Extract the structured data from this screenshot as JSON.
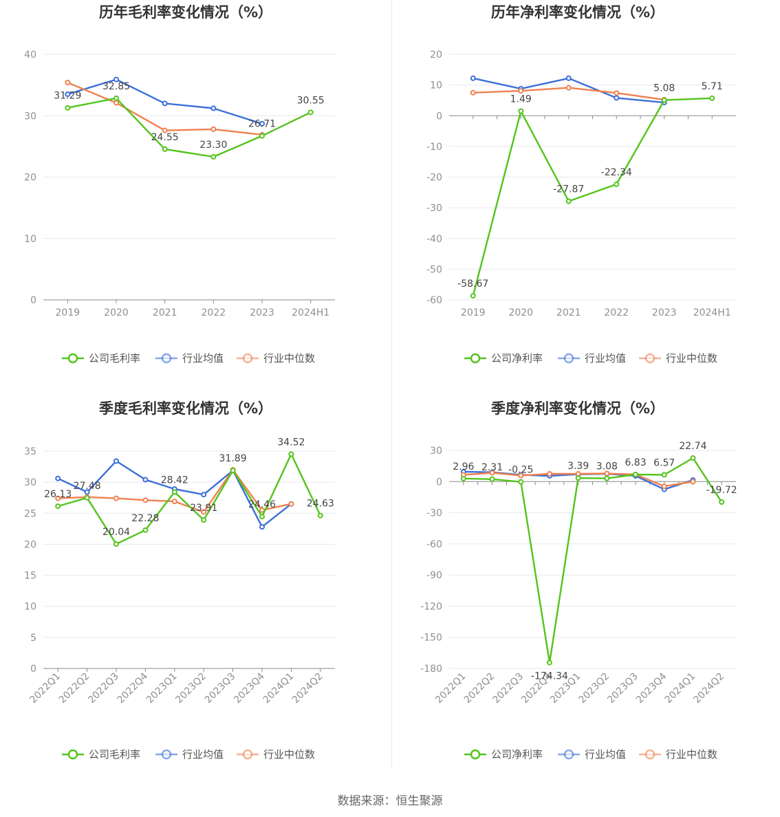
{
  "colors": {
    "company": "#52c41a",
    "avg": "#3a6fd8",
    "median": "#f08050",
    "grid": "#e6e8f0",
    "axis": "#888888"
  },
  "legend": {
    "gross": [
      "公司毛利率",
      "行业均值",
      "行业中位数"
    ],
    "net": [
      "公司净利率",
      "行业均值",
      "行业中位数"
    ]
  },
  "source_text": "数据来源：恒生聚源",
  "chart_data": [
    {
      "type": "line",
      "title": "历年毛利率变化情况（%）",
      "categories": [
        "2019",
        "2020",
        "2021",
        "2022",
        "2023",
        "2024H1"
      ],
      "ylim": [
        0,
        40
      ],
      "yticks": [
        0,
        10,
        20,
        30,
        40
      ],
      "series": [
        {
          "name": "公司毛利率",
          "values": [
            31.29,
            32.85,
            24.55,
            23.3,
            26.71,
            30.55
          ],
          "labels": [
            "31.29",
            "32.85",
            "24.55",
            "23.30",
            "26.71",
            "30.55"
          ]
        },
        {
          "name": "行业均值",
          "values": [
            33.5,
            35.9,
            32.0,
            31.2,
            28.7,
            null
          ]
        },
        {
          "name": "行业中位数",
          "values": [
            35.4,
            32.1,
            27.6,
            27.8,
            26.9,
            null
          ]
        }
      ]
    },
    {
      "type": "line",
      "title": "历年净利率变化情况（%）",
      "categories": [
        "2019",
        "2020",
        "2021",
        "2022",
        "2023",
        "2024H1"
      ],
      "ylim": [
        -60,
        20
      ],
      "yticks": [
        -60,
        -50,
        -40,
        -30,
        -20,
        -10,
        0,
        10,
        20
      ],
      "series": [
        {
          "name": "公司净利率",
          "values": [
            -58.67,
            1.49,
            -27.87,
            -22.34,
            5.08,
            5.71
          ],
          "labels": [
            "-58.67",
            "1.49",
            "-27.87",
            "-22.34",
            "5.08",
            "5.71"
          ]
        },
        {
          "name": "行业均值",
          "values": [
            12.2,
            8.8,
            12.2,
            5.8,
            4.3,
            null
          ]
        },
        {
          "name": "行业中位数",
          "values": [
            7.5,
            8.1,
            9.1,
            7.4,
            5.2,
            null
          ]
        }
      ]
    },
    {
      "type": "line",
      "title": "季度毛利率变化情况（%）",
      "categories": [
        "2022Q1",
        "2022Q2",
        "2022Q3",
        "2022Q4",
        "2023Q1",
        "2023Q2",
        "2023Q3",
        "2023Q4",
        "2024Q1",
        "2024Q2"
      ],
      "ylim": [
        0,
        35
      ],
      "yticks": [
        0,
        5,
        10,
        15,
        20,
        25,
        30,
        35
      ],
      "series": [
        {
          "name": "公司毛利率",
          "values": [
            26.13,
            27.48,
            20.04,
            22.28,
            28.42,
            23.91,
            31.89,
            24.46,
            34.52,
            24.63
          ],
          "labels": [
            "26.13",
            "27.48",
            "20.04",
            "22.28",
            "28.42",
            "23.91",
            "31.89",
            "24.46",
            "34.52",
            "24.63"
          ]
        },
        {
          "name": "行业均值",
          "values": [
            30.6,
            28.4,
            33.4,
            30.4,
            28.9,
            28.0,
            31.9,
            22.8,
            26.5,
            null
          ]
        },
        {
          "name": "行业中位数",
          "values": [
            27.4,
            27.6,
            27.4,
            27.1,
            26.9,
            25.2,
            32.0,
            25.5,
            26.5,
            null
          ]
        }
      ]
    },
    {
      "type": "line",
      "title": "季度净利率变化情况（%）",
      "categories": [
        "2022Q1",
        "2022Q2",
        "2022Q3",
        "2022Q4",
        "2023Q1",
        "2023Q2",
        "2023Q3",
        "2023Q4",
        "2024Q1",
        "2024Q2"
      ],
      "ylim": [
        -180,
        30
      ],
      "yticks": [
        -180,
        -150,
        -120,
        -90,
        -60,
        -30,
        0,
        30
      ],
      "series": [
        {
          "name": "公司净利率",
          "values": [
            2.96,
            2.31,
            -0.25,
            -174.34,
            3.39,
            3.08,
            6.83,
            6.57,
            22.74,
            -19.72
          ],
          "labels": [
            "2.96",
            "2.31",
            "-0.25",
            "-174.34",
            "3.39",
            "3.08",
            "6.83",
            "6.57",
            "22.74",
            "-19.72"
          ]
        },
        {
          "name": "行业均值",
          "values": [
            9.5,
            9.0,
            6.5,
            5.5,
            7.0,
            7.5,
            5.5,
            -7.5,
            1.5,
            null
          ]
        },
        {
          "name": "行业中位数",
          "values": [
            6.5,
            8.5,
            5.8,
            7.5,
            7.5,
            7.8,
            6.8,
            -4.5,
            0.0,
            null
          ]
        }
      ]
    }
  ]
}
